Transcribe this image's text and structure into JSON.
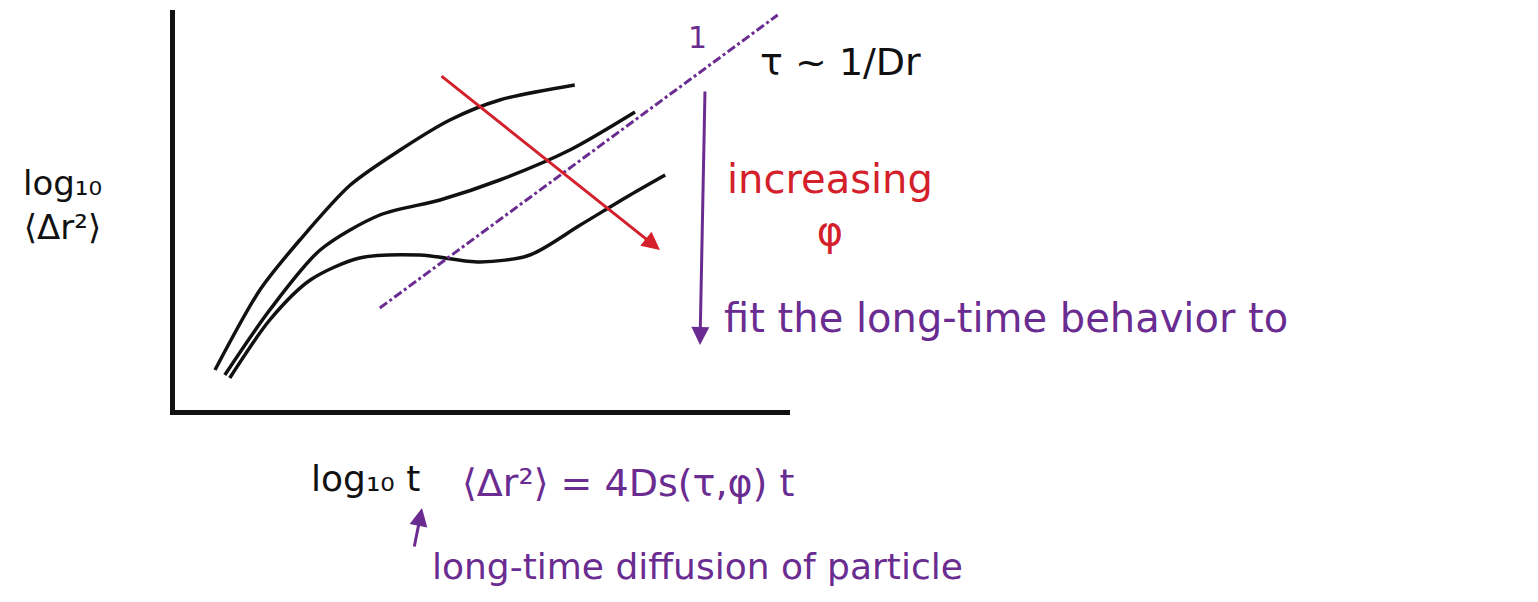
{
  "chart_data": {
    "type": "line",
    "x_label": "log₁₀ t",
    "y_label": "log₁₀ ⟨Δr²⟩",
    "xlim": [
      0,
      10
    ],
    "ylim": [
      0,
      8
    ],
    "xticks": [],
    "yticks": [],
    "tick_labels": false,
    "grid": false,
    "series": [
      {
        "color": "#111111",
        "line_style": "solid",
        "x": [
          0.65,
          1.38,
          2.03,
          2.85,
          3.66,
          4.47,
          5.28,
          6.5
        ],
        "values": [
          0.8,
          2.4,
          3.4,
          4.5,
          5.2,
          5.8,
          6.2,
          6.5
        ]
      },
      {
        "color": "#111111",
        "line_style": "solid",
        "x": [
          0.81,
          1.54,
          2.36,
          3.33,
          4.31,
          5.28,
          6.42,
          7.48
        ],
        "values": [
          0.7,
          2.0,
          3.2,
          3.9,
          4.2,
          4.6,
          5.2,
          5.96
        ]
      },
      {
        "color": "#111111",
        "line_style": "solid",
        "x": [
          0.89,
          1.54,
          2.2,
          3.0,
          3.98,
          4.96,
          5.77,
          6.59,
          7.4,
          7.97
        ],
        "values": [
          0.64,
          1.8,
          2.6,
          3.04,
          3.1,
          2.96,
          3.1,
          3.7,
          4.3,
          4.7
        ]
      },
      {
        "color": "#6a2c91",
        "line_style": "dashdot",
        "x": [
          3.33,
          9.8
        ],
        "values": [
          2.04,
          7.9
        ]
      }
    ],
    "annotations": [
      {
        "text": "1",
        "color": "#6a2c91"
      },
      {
        "text": "τ ~ 1/Dr",
        "color": "#111111"
      },
      {
        "text": "increasing φ",
        "color": "#d4202a"
      },
      {
        "text": "fit the long-time behavior to",
        "color": "#6a2c91"
      },
      {
        "text": "⟨Δr²⟩ = 4Ds(τ,φ) t",
        "color": "#6a2c91"
      },
      {
        "text": "long-time diffusion of particle",
        "color": "#6a2c91"
      }
    ]
  }
}
